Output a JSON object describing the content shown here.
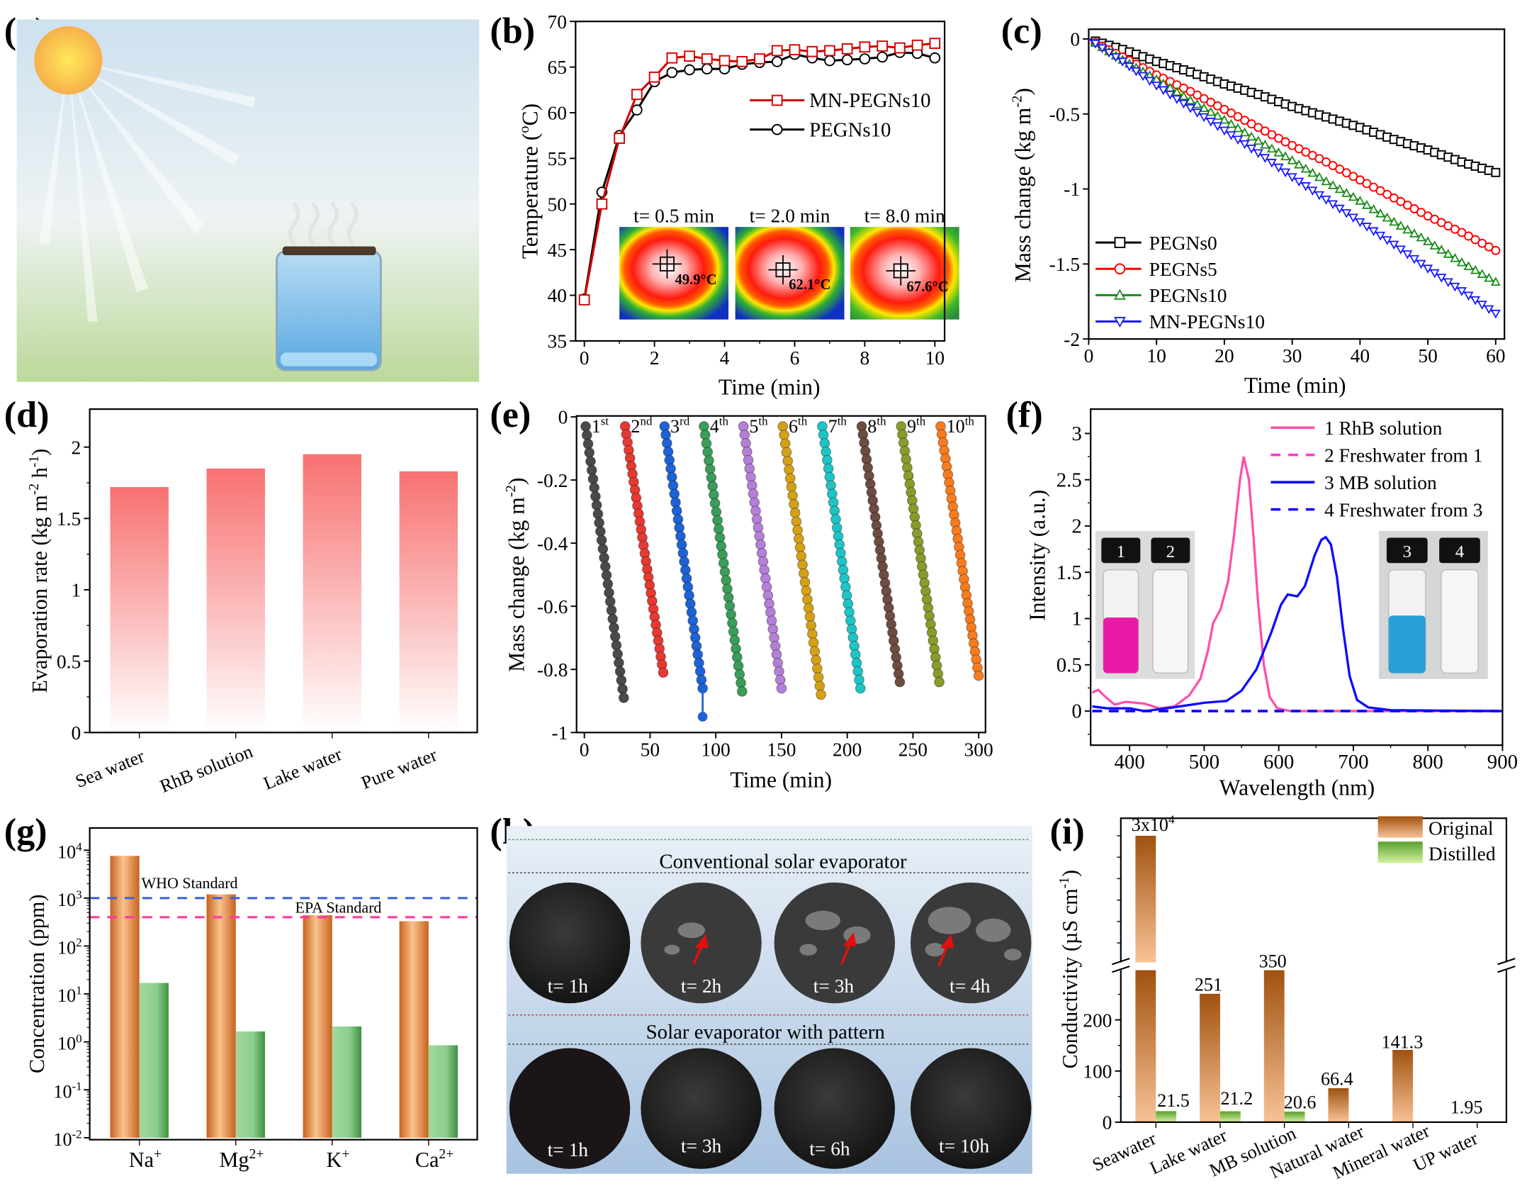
{
  "panel_labels": {
    "a": "(a)",
    "b": "(b)",
    "c": "(c)",
    "d": "(d)",
    "e": "(e)",
    "f": "(f)",
    "g": "(g)",
    "h": "(h)",
    "i": "(i)"
  },
  "chart_data": [
    {
      "panel": "b",
      "type": "line",
      "xlabel": [
        {
          "t": "Time (min)"
        }
      ],
      "ylabel": [
        {
          "t": "Temperature ("
        },
        {
          "t": "o",
          "sup": true
        },
        {
          "t": "C)"
        }
      ],
      "xlim": [
        -0.25,
        10.3
      ],
      "ylim": [
        35,
        70
      ],
      "x_ticks": [
        0,
        2,
        4,
        6,
        8,
        10
      ],
      "y_ticks": [
        35,
        40,
        45,
        50,
        55,
        60,
        65,
        70
      ],
      "x": [
        0,
        0.5,
        1,
        1.5,
        2,
        2.5,
        3,
        3.5,
        4,
        4.5,
        5,
        5.5,
        6,
        6.5,
        7,
        7.5,
        8,
        8.5,
        9,
        9.5,
        10
      ],
      "series": [
        {
          "name": "MN-PEGNs10",
          "marker": "square",
          "color": "#d40000",
          "values": [
            39.5,
            50,
            57.2,
            62,
            63.9,
            66,
            66.2,
            65.9,
            65.7,
            65.6,
            65.9,
            66.8,
            66.9,
            66.7,
            66.8,
            67,
            67.2,
            67.3,
            67.1,
            67.4,
            67.6
          ]
        },
        {
          "name": "PEGNs10",
          "marker": "circle",
          "color": "#000000",
          "values": [
            39.6,
            51.3,
            57.5,
            60.3,
            63.4,
            64.4,
            64.7,
            64.8,
            64.8,
            65.3,
            65.5,
            65.6,
            66.4,
            66,
            65.7,
            65.8,
            65.9,
            66.1,
            66.6,
            66.5,
            66
          ]
        }
      ],
      "insets": [
        {
          "label": "t= 0.5 min",
          "temperature": "49.9°C"
        },
        {
          "label": "t= 2.0 min",
          "temperature": "62.1°C"
        },
        {
          "label": "t= 8.0 min",
          "temperature": "67.6°C"
        }
      ]
    },
    {
      "panel": "c",
      "type": "line",
      "xlabel": [
        {
          "t": "Time (min)"
        }
      ],
      "ylabel": [
        {
          "t": "Mass change (kg m"
        },
        {
          "t": "-2",
          "sup": true
        },
        {
          "t": ")"
        }
      ],
      "xlim": [
        0,
        61.3
      ],
      "ylim": [
        -2,
        0.07
      ],
      "x_ticks": [
        0,
        10,
        20,
        30,
        40,
        50,
        60
      ],
      "y_ticks": [
        0,
        -0.5,
        -1,
        -1.5,
        -2
      ],
      "y_tick_labels": [
        "0",
        "-0.5",
        "-1",
        "-1.5",
        "-2"
      ],
      "x": [
        0,
        5,
        10,
        15,
        20,
        25,
        30,
        35,
        40,
        45,
        50,
        55,
        60
      ],
      "series": [
        {
          "name": "PEGNs0",
          "marker": "square",
          "color": "#000000",
          "values": [
            0,
            -0.07,
            -0.15,
            -0.22,
            -0.3,
            -0.37,
            -0.45,
            -0.52,
            -0.59,
            -0.67,
            -0.74,
            -0.82,
            -0.89
          ]
        },
        {
          "name": "PEGNs5",
          "marker": "circle",
          "color": "#ff0000",
          "values": [
            0,
            -0.12,
            -0.24,
            -0.35,
            -0.47,
            -0.59,
            -0.71,
            -0.82,
            -0.94,
            -1.06,
            -1.18,
            -1.29,
            -1.41
          ]
        },
        {
          "name": "PEGNs10",
          "marker": "triangle-up",
          "color": "#1a8a1a",
          "values": [
            0,
            -0.14,
            -0.27,
            -0.41,
            -0.54,
            -0.68,
            -0.81,
            -0.95,
            -1.08,
            -1.22,
            -1.35,
            -1.49,
            -1.62
          ]
        },
        {
          "name": "MN-PEGNs10",
          "marker": "triangle-down",
          "color": "#1a1aff",
          "values": [
            0,
            -0.15,
            -0.31,
            -0.46,
            -0.61,
            -0.76,
            -0.92,
            -1.07,
            -1.22,
            -1.37,
            -1.53,
            -1.68,
            -1.83
          ]
        }
      ]
    },
    {
      "panel": "d",
      "type": "bar",
      "ylabel": [
        {
          "t": "Evaporation rate (kg m"
        },
        {
          "t": "-2",
          "sup": true
        },
        {
          "t": " h"
        },
        {
          "t": "-1",
          "sup": true
        },
        {
          "t": ")"
        }
      ],
      "categories": [
        "Sea water",
        "RhB solution",
        "Lake water",
        "Pure water"
      ],
      "values": [
        1.72,
        1.85,
        1.95,
        1.83
      ],
      "ylim": [
        0,
        2.22
      ],
      "y_ticks": [
        0,
        0.5,
        1,
        1.5,
        2
      ],
      "color": "#f87171"
    },
    {
      "panel": "e",
      "type": "scatter",
      "xlabel": [
        {
          "t": "Time (min)"
        }
      ],
      "ylabel": [
        {
          "t": "Mass change (kg m"
        },
        {
          "t": "-2",
          "sup": true
        },
        {
          "t": ")"
        }
      ],
      "xlim": [
        -6,
        306
      ],
      "ylim": [
        -1,
        0
      ],
      "x_ticks": [
        0,
        50,
        100,
        150,
        200,
        250,
        300
      ],
      "y_ticks": [
        0,
        -0.2,
        -0.4,
        -0.6,
        -0.8,
        -1
      ],
      "y_tick_labels": [
        "0",
        "-0.2",
        "-0.4",
        "-0.6",
        "-0.8",
        "-1"
      ],
      "cycles": [
        {
          "label": "1",
          "suffix": "st",
          "color": "#4a4a4a",
          "start_time": 1,
          "end_time": 30,
          "start_mass": -0.03,
          "end_mass": -0.89
        },
        {
          "label": "2",
          "suffix": "nd",
          "color": "#e53935",
          "start_time": 31,
          "end_time": 60,
          "start_mass": -0.03,
          "end_mass": -0.81
        },
        {
          "label": "3",
          "suffix": "rd",
          "color": "#1e63d6",
          "start_time": 61,
          "end_time": 90,
          "start_mass": -0.03,
          "end_mass": -0.86,
          "final_mass": -0.95
        },
        {
          "label": "4",
          "suffix": "th",
          "color": "#3a9d5a",
          "start_time": 91,
          "end_time": 120,
          "start_mass": -0.03,
          "end_mass": -0.87
        },
        {
          "label": "5",
          "suffix": "th",
          "color": "#b57fd8",
          "start_time": 121,
          "end_time": 150,
          "start_mass": -0.03,
          "end_mass": -0.86
        },
        {
          "label": "6",
          "suffix": "th",
          "color": "#d4a017",
          "start_time": 151,
          "end_time": 180,
          "start_mass": -0.03,
          "end_mass": -0.88
        },
        {
          "label": "7",
          "suffix": "th",
          "color": "#1fc4c4",
          "start_time": 181,
          "end_time": 210,
          "start_mass": -0.03,
          "end_mass": -0.86
        },
        {
          "label": "8",
          "suffix": "th",
          "color": "#6d4c41",
          "start_time": 211,
          "end_time": 240,
          "start_mass": -0.03,
          "end_mass": -0.84
        },
        {
          "label": "9",
          "suffix": "th",
          "color": "#8b9a2a",
          "start_time": 241,
          "end_time": 270,
          "start_mass": -0.03,
          "end_mass": -0.84
        },
        {
          "label": "10",
          "suffix": "th",
          "color": "#f57c20",
          "start_time": 271,
          "end_time": 300,
          "start_mass": -0.03,
          "end_mass": -0.82
        }
      ]
    },
    {
      "panel": "f",
      "type": "line",
      "xlabel": [
        {
          "t": "Wavelength (nm)"
        }
      ],
      "ylabel": [
        {
          "t": "Intensity (a.u.)"
        }
      ],
      "xlim": [
        350,
        900
      ],
      "ylim": [
        -0.37,
        3.26
      ],
      "x_ticks": [
        400,
        500,
        600,
        700,
        800,
        900
      ],
      "y_ticks": [
        0,
        0.5,
        1,
        1.5,
        2,
        2.5,
        3
      ],
      "series": [
        {
          "name": "1 RhB solution",
          "color": "#ff4fa8",
          "dash": false,
          "points": [
            [
              350,
              0.2
            ],
            [
              358,
              0.23
            ],
            [
              368,
              0.15
            ],
            [
              380,
              0.07
            ],
            [
              395,
              0.1
            ],
            [
              420,
              0.08
            ],
            [
              440,
              0.03
            ],
            [
              460,
              0.05
            ],
            [
              480,
              0.17
            ],
            [
              495,
              0.35
            ],
            [
              505,
              0.65
            ],
            [
              512,
              0.95
            ],
            [
              522,
              1.1
            ],
            [
              532,
              1.4
            ],
            [
              540,
              1.9
            ],
            [
              548,
              2.5
            ],
            [
              553,
              2.75
            ],
            [
              560,
              2.5
            ],
            [
              566,
              1.9
            ],
            [
              572,
              1.2
            ],
            [
              580,
              0.5
            ],
            [
              588,
              0.15
            ],
            [
              598,
              0.03
            ],
            [
              615,
              0
            ],
            [
              900,
              0
            ]
          ]
        },
        {
          "name": "2 Freshwater from 1",
          "color": "#ff3ad2",
          "dash": true,
          "points": [
            [
              350,
              0
            ],
            [
              900,
              0
            ]
          ]
        },
        {
          "name": "3 MB solution",
          "color": "#0a0aff",
          "dash": false,
          "points": [
            [
              350,
              0.05
            ],
            [
              370,
              0.03
            ],
            [
              400,
              0.03
            ],
            [
              420,
              0
            ],
            [
              450,
              0.03
            ],
            [
              500,
              0.09
            ],
            [
              530,
              0.11
            ],
            [
              550,
              0.22
            ],
            [
              570,
              0.45
            ],
            [
              590,
              0.85
            ],
            [
              603,
              1.15
            ],
            [
              612,
              1.26
            ],
            [
              625,
              1.24
            ],
            [
              635,
              1.35
            ],
            [
              648,
              1.68
            ],
            [
              657,
              1.85
            ],
            [
              663,
              1.88
            ],
            [
              670,
              1.8
            ],
            [
              678,
              1.45
            ],
            [
              686,
              0.9
            ],
            [
              695,
              0.38
            ],
            [
              705,
              0.12
            ],
            [
              720,
              0.04
            ],
            [
              750,
              0.01
            ],
            [
              900,
              0
            ]
          ]
        },
        {
          "name": "4 Freshwater from 3",
          "color": "#0a0aff",
          "dash": true,
          "points": [
            [
              350,
              0
            ],
            [
              900,
              0
            ]
          ]
        }
      ],
      "vials": [
        "1",
        "2",
        "3",
        "4"
      ]
    },
    {
      "panel": "g",
      "type": "bar",
      "y_scale": "log",
      "ylabel": [
        {
          "t": "Concentration (ppm)"
        }
      ],
      "ylim": [
        0.01,
        30000
      ],
      "y_tick_exponents": [
        -2,
        -1,
        0,
        1,
        2,
        3,
        4
      ],
      "categories": [
        [
          {
            "t": "Na"
          },
          {
            "t": "+",
            "sup": true
          }
        ],
        [
          {
            "t": "Mg"
          },
          {
            "t": "2+",
            "sup": true
          }
        ],
        [
          {
            "t": "K"
          },
          {
            "t": "+",
            "sup": true
          }
        ],
        [
          {
            "t": "Ca"
          },
          {
            "t": "2+",
            "sup": true
          }
        ]
      ],
      "series": [
        {
          "color": "#e07b35",
          "values": [
            7600,
            1200,
            440,
            330
          ]
        },
        {
          "color": "#6cbf6c",
          "values": [
            17,
            1.65,
            2.1,
            0.85
          ]
        }
      ],
      "reference_lines": [
        {
          "label": "WHO Standard",
          "value": 1000,
          "color": "#3a5de0"
        },
        {
          "label": "EPA Standard",
          "value": 400,
          "color": "#ff3aa0"
        }
      ]
    },
    {
      "panel": "i",
      "type": "bar",
      "y_axis_break": true,
      "ylabel": [
        {
          "t": "Conductivity (µS cm"
        },
        {
          "t": "-1",
          "sup": true
        },
        {
          "t": ")"
        }
      ],
      "y_ticks": [
        0,
        100,
        200
      ],
      "categories": [
        "Seawater",
        "Lake water",
        "MB solution",
        "Natural  water",
        "Mineral water",
        "UP water"
      ],
      "series": [
        {
          "name": "Original",
          "color": "#a0520f",
          "values": [
            30000,
            251,
            350,
            66.4,
            141.3,
            1.95
          ],
          "value_labels": [
            [
              {
                "t": "3x10"
              },
              {
                "t": "4",
                "sup": true
              }
            ],
            "251",
            "350",
            "66.4",
            "141.3",
            "1.95"
          ]
        },
        {
          "name": "Distilled",
          "color": "#5aa02c",
          "values": [
            21.5,
            21.2,
            20.6,
            null,
            null,
            null
          ],
          "value_labels": [
            "21.5",
            "21.2",
            "20.6",
            null,
            null,
            null
          ]
        }
      ],
      "legend": "top-right"
    }
  ],
  "panel_h": {
    "row1_title": "Conventional solar evaporator",
    "row2_title": "Solar evaporator with pattern",
    "row1_times": [
      "t= 1h",
      "t= 2h",
      "t= 3h",
      "t= 4h"
    ],
    "row2_times": [
      "t= 1h",
      "t= 3h",
      "t= 6h",
      "t= 10h"
    ]
  }
}
